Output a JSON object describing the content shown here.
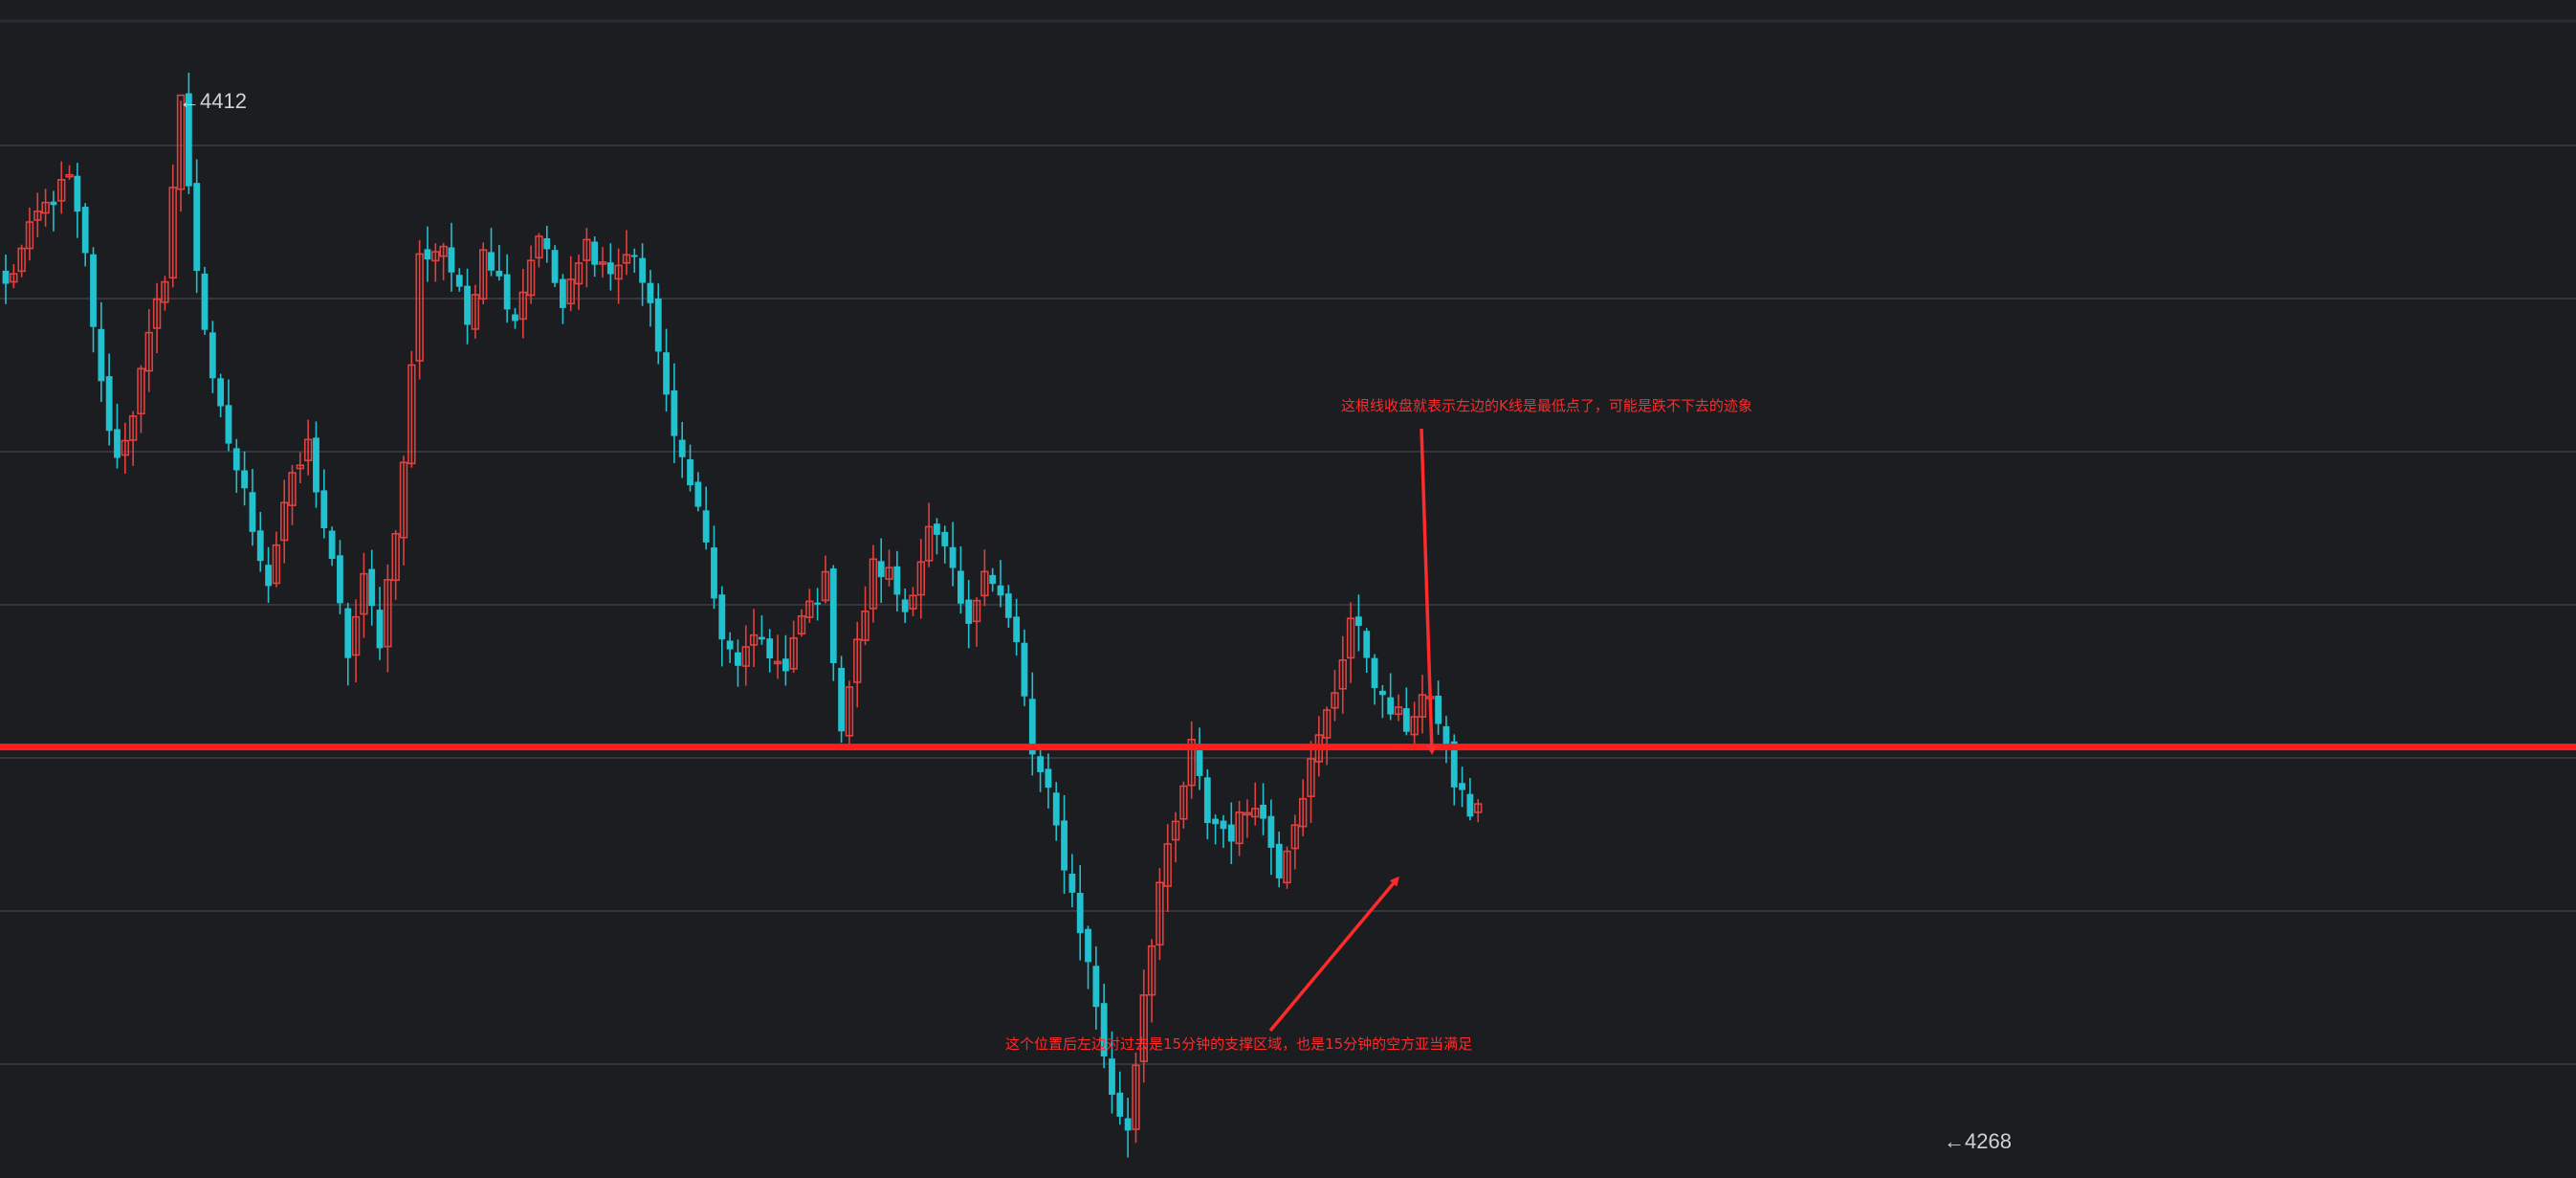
{
  "chart_data": {
    "type": "candlestick",
    "title": "",
    "xlabel": "",
    "ylabel": "",
    "ylim": [
      4262,
      4426
    ],
    "grid": "horizontal",
    "colors": {
      "up": "#e0413f",
      "down": "#22c1cf",
      "background": "#1c1d21",
      "grid": "#34363c",
      "support_line": "#ff1e1e",
      "annotation": "#ff2a2a"
    },
    "high_label": {
      "text": "←4412",
      "value": 4412
    },
    "low_label": {
      "text": "←4268",
      "value": 4268
    },
    "support_level": 4322,
    "annotations": [
      {
        "id": "upper",
        "text": "这根线收盘就表示左边的K线是最低点了，可能是跌不下去的迹象"
      },
      {
        "id": "lower",
        "text": "这个位置后左边对过去是15分钟的支撑区域，也是15分钟的空方亚当满足"
      }
    ],
    "waypoints": [
      [
        0,
        4386
      ],
      [
        4,
        4396
      ],
      [
        8,
        4401
      ],
      [
        10,
        4390
      ],
      [
        12,
        4372
      ],
      [
        14,
        4362
      ],
      [
        16,
        4369
      ],
      [
        20,
        4388
      ],
      [
        22,
        4412
      ],
      [
        24,
        4389
      ],
      [
        26,
        4372
      ],
      [
        30,
        4357
      ],
      [
        33,
        4345
      ],
      [
        35,
        4356
      ],
      [
        38,
        4364
      ],
      [
        41,
        4347
      ],
      [
        43,
        4335
      ],
      [
        45,
        4345
      ],
      [
        47,
        4337
      ],
      [
        50,
        4361
      ],
      [
        52,
        4390
      ],
      [
        55,
        4392
      ],
      [
        58,
        4381
      ],
      [
        60,
        4392
      ],
      [
        64,
        4382
      ],
      [
        67,
        4394
      ],
      [
        70,
        4383
      ],
      [
        73,
        4392
      ],
      [
        76,
        4388
      ],
      [
        79,
        4391
      ],
      [
        82,
        4378
      ],
      [
        84,
        4364
      ],
      [
        86,
        4360
      ],
      [
        88,
        4350
      ],
      [
        90,
        4336
      ],
      [
        92,
        4334
      ],
      [
        95,
        4337
      ],
      [
        98,
        4332
      ],
      [
        100,
        4340
      ],
      [
        103,
        4345
      ],
      [
        105,
        4325
      ],
      [
        107,
        4336
      ],
      [
        109,
        4347
      ],
      [
        111,
        4346
      ],
      [
        113,
        4341
      ],
      [
        116,
        4352
      ],
      [
        118,
        4349
      ],
      [
        121,
        4338
      ],
      [
        123,
        4348
      ],
      [
        125,
        4343
      ],
      [
        127,
        4336
      ],
      [
        129,
        4321
      ],
      [
        131,
        4315
      ],
      [
        133,
        4306
      ],
      [
        135,
        4297
      ],
      [
        137,
        4286
      ],
      [
        139,
        4273
      ],
      [
        141,
        4269
      ],
      [
        143,
        4288
      ],
      [
        145,
        4303
      ],
      [
        147,
        4311
      ],
      [
        149,
        4322
      ],
      [
        151,
        4312
      ],
      [
        154,
        4310
      ],
      [
        157,
        4315
      ],
      [
        160,
        4305
      ],
      [
        163,
        4316
      ],
      [
        165,
        4323
      ],
      [
        167,
        4330
      ],
      [
        169,
        4340
      ],
      [
        171,
        4335
      ],
      [
        173,
        4328
      ],
      [
        176,
        4325
      ],
      [
        178,
        4329
      ],
      [
        180,
        4326
      ],
      [
        182,
        4317
      ],
      [
        184,
        4313
      ],
      [
        185,
        4314
      ]
    ]
  }
}
